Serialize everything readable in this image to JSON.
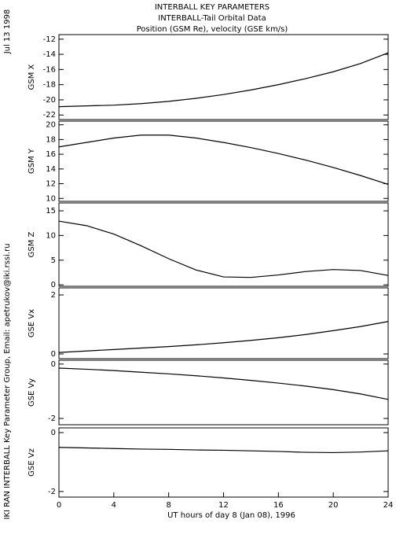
{
  "titles": [
    "INTERBALL KEY PARAMETERS",
    "INTERBALL-Tail Orbital Data",
    "Position (GSM Re), velocity (GSE km/s)"
  ],
  "date": "Jul 13 1998",
  "credit": "IKI RAN INTERBALL Key Parameter Group, Email: apetrukov@iki.rssi.ru",
  "chart_data": [
    {
      "type": "line",
      "ylabel": "GSM X",
      "xlim": [
        0,
        24
      ],
      "ylim": [
        -22.6,
        -11.4
      ],
      "yticks": [
        -22,
        -20,
        -18,
        -16,
        -14,
        -12
      ],
      "x": [
        0,
        2,
        4,
        6,
        8,
        10,
        12,
        14,
        16,
        18,
        20,
        22,
        24
      ],
      "values": [
        -20.9,
        -20.8,
        -20.7,
        -20.5,
        -20.2,
        -19.8,
        -19.3,
        -18.7,
        -18.0,
        -17.2,
        -16.3,
        -15.2,
        -13.8
      ],
      "color": "#000000"
    },
    {
      "type": "line",
      "ylabel": "GSM Y",
      "xlim": [
        0,
        24
      ],
      "ylim": [
        9.6,
        20.5
      ],
      "yticks": [
        10,
        12,
        14,
        16,
        18,
        20
      ],
      "x": [
        0,
        2,
        4,
        6,
        8,
        10,
        12,
        14,
        16,
        18,
        20,
        22,
        24
      ],
      "values": [
        17.0,
        17.6,
        18.2,
        18.6,
        18.6,
        18.2,
        17.6,
        16.9,
        16.1,
        15.2,
        14.2,
        13.1,
        11.9
      ],
      "color": "#000000"
    },
    {
      "type": "line",
      "ylabel": "GSM Z",
      "xlim": [
        0,
        24
      ],
      "ylim": [
        -0.3,
        16.6
      ],
      "yticks": [
        0,
        5,
        10,
        15
      ],
      "x": [
        0,
        2,
        4,
        6,
        8,
        10,
        12,
        14,
        16,
        18,
        20,
        22,
        24
      ],
      "values": [
        12.9,
        12.0,
        10.3,
        7.9,
        5.3,
        3.0,
        1.6,
        1.5,
        2.0,
        2.7,
        3.1,
        2.9,
        1.9
      ],
      "color": "#000000"
    },
    {
      "type": "line",
      "ylabel": "GSE Vx",
      "xlim": [
        0,
        24
      ],
      "ylim": [
        -0.16,
        2.24
      ],
      "yticks": [
        0,
        2
      ],
      "x": [
        0,
        2,
        4,
        6,
        8,
        10,
        12,
        14,
        16,
        18,
        20,
        22,
        24
      ],
      "values": [
        0.05,
        0.1,
        0.15,
        0.2,
        0.25,
        0.31,
        0.38,
        0.46,
        0.55,
        0.66,
        0.79,
        0.93,
        1.1
      ],
      "color": "#000000"
    },
    {
      "type": "line",
      "ylabel": "GSE Vy",
      "xlim": [
        0,
        24
      ],
      "ylim": [
        -2.23,
        0.14
      ],
      "yticks": [
        -2,
        0
      ],
      "x": [
        0,
        2,
        4,
        6,
        8,
        10,
        12,
        14,
        16,
        18,
        20,
        22,
        24
      ],
      "values": [
        -0.15,
        -0.19,
        -0.24,
        -0.3,
        -0.36,
        -0.43,
        -0.51,
        -0.6,
        -0.7,
        -0.81,
        -0.94,
        -1.1,
        -1.3
      ],
      "color": "#000000"
    },
    {
      "type": "line",
      "ylabel": "GSE Vz",
      "xlim": [
        0,
        24
      ],
      "ylim": [
        -2.19,
        0.16
      ],
      "yticks": [
        -2,
        0
      ],
      "x": [
        0,
        2,
        4,
        6,
        8,
        10,
        12,
        14,
        16,
        18,
        20,
        22,
        24
      ],
      "values": [
        -0.5,
        -0.52,
        -0.54,
        -0.56,
        -0.57,
        -0.59,
        -0.6,
        -0.62,
        -0.64,
        -0.67,
        -0.68,
        -0.66,
        -0.62
      ],
      "color": "#000000",
      "xticks": [
        0,
        4,
        8,
        12,
        16,
        20,
        24
      ],
      "xlabel": "UT hours of day   8 (Jan 08), 1996"
    }
  ]
}
